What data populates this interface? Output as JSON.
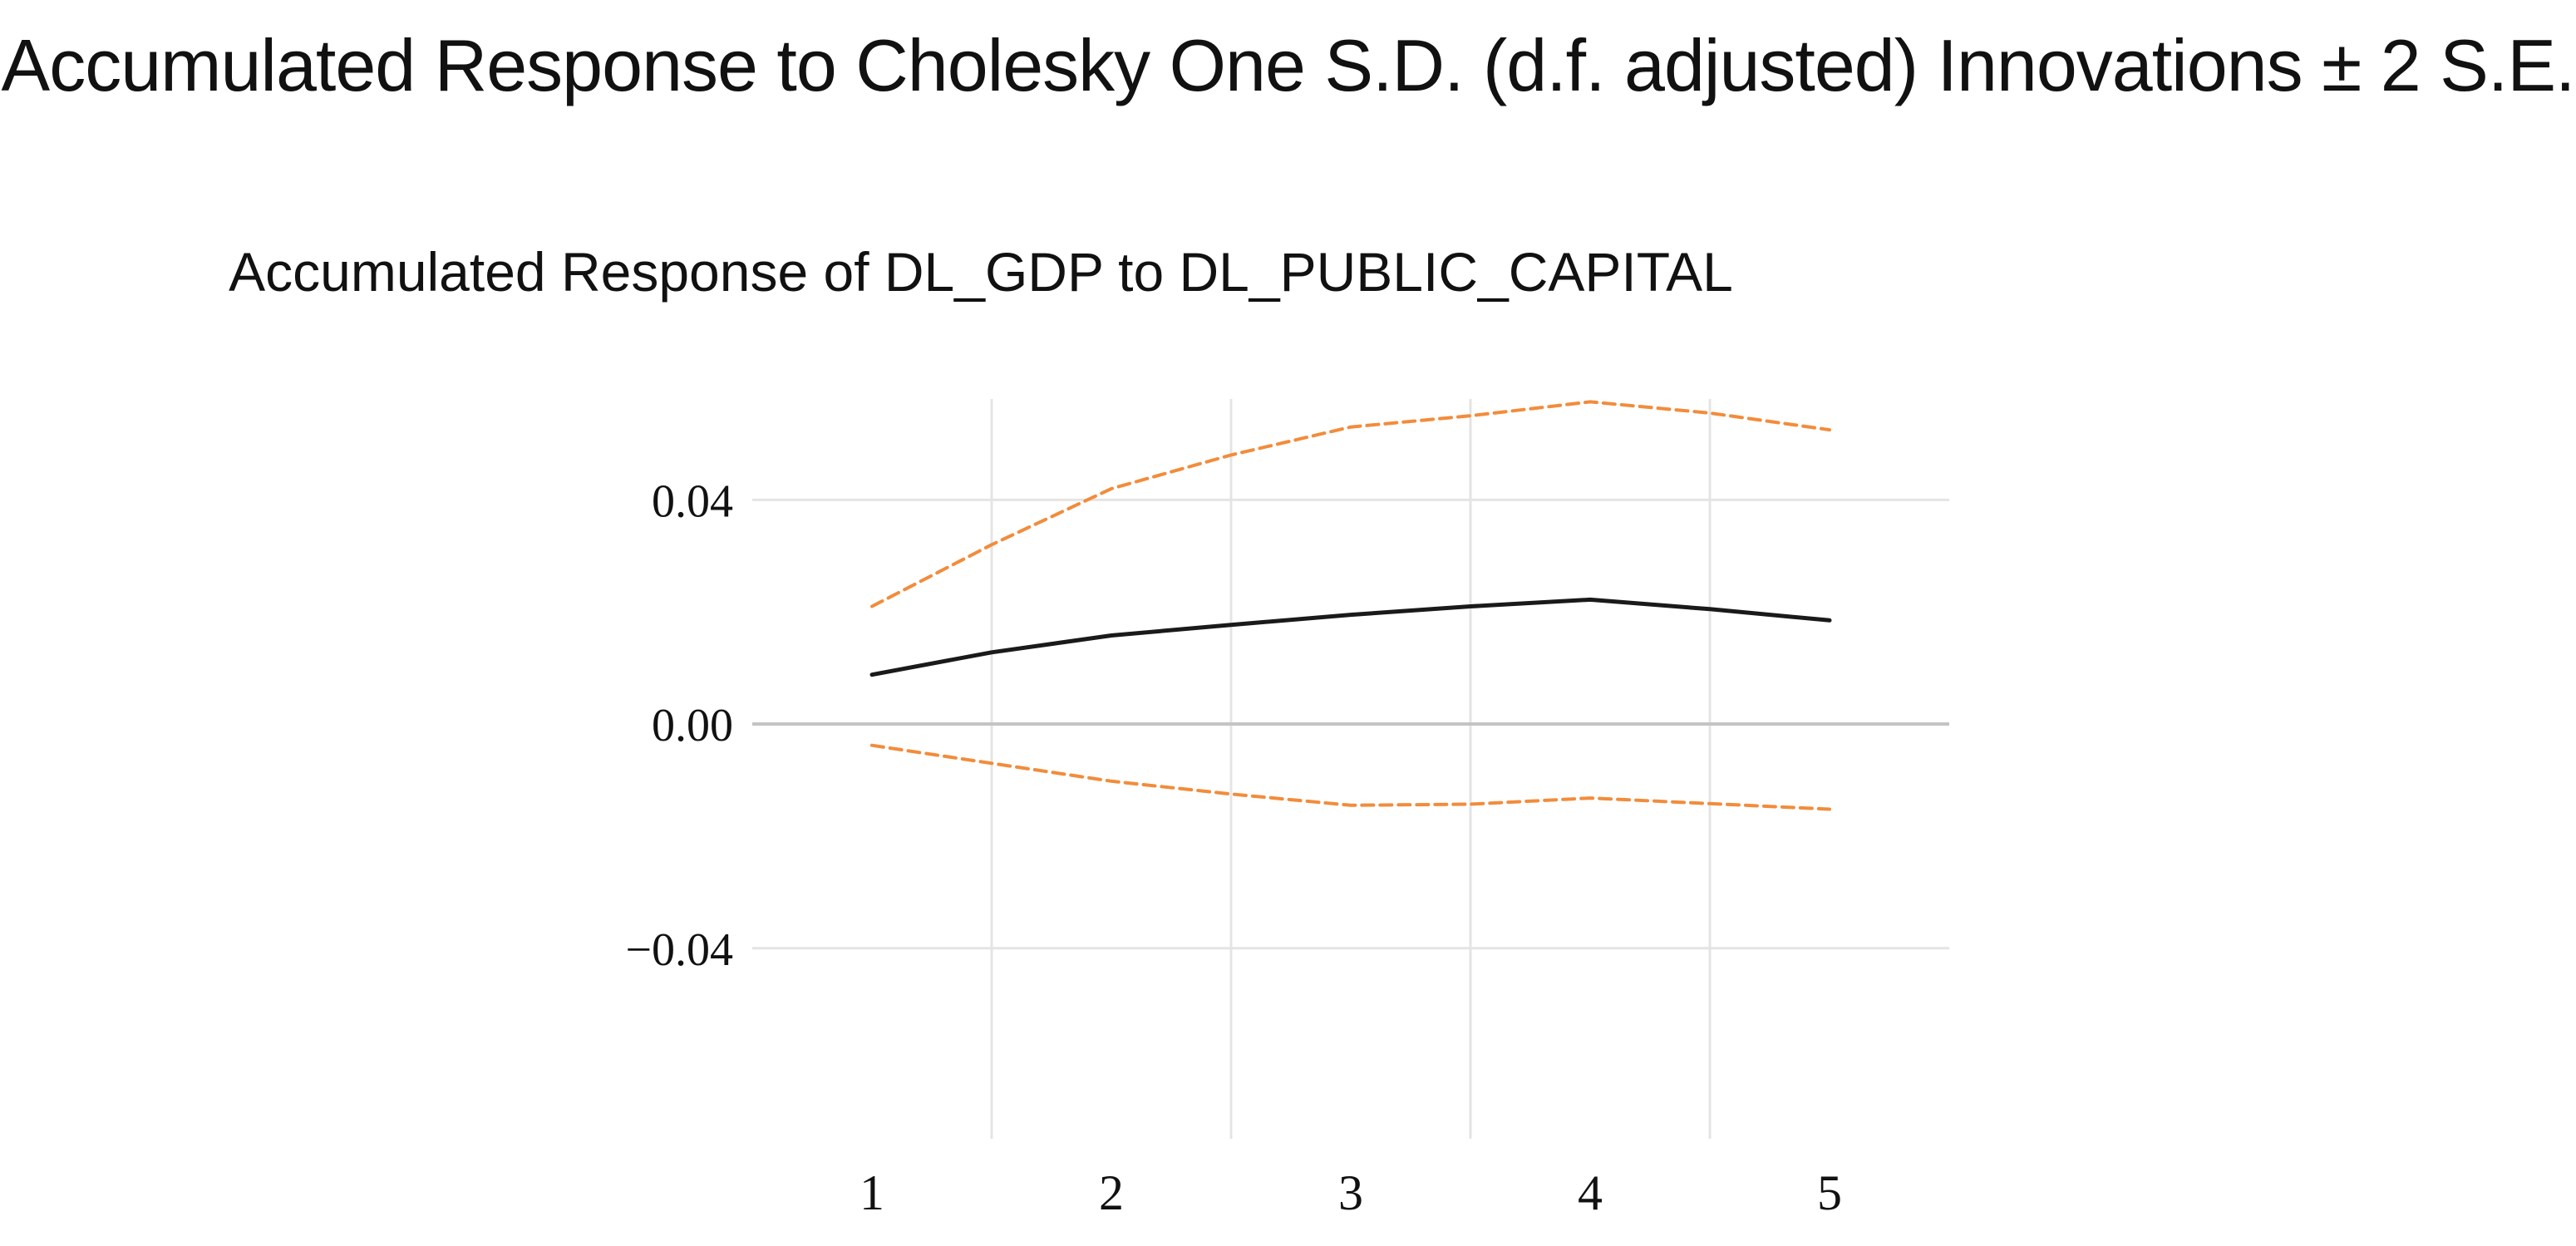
{
  "figure_title": "Accumulated Response to Cholesky One S.D. (d.f. adjusted) Innovations ± 2 S.E.",
  "chart_data": {
    "type": "line",
    "title": "Accumulated Response of DL_GDP to DL_PUBLIC_CAPITAL",
    "xlabel": "",
    "ylabel": "",
    "x": [
      1,
      2,
      3,
      4,
      5
    ],
    "x_tick_labels": [
      "1",
      "2",
      "3",
      "4",
      "5"
    ],
    "y_ticks": [
      0.04,
      0.0,
      -0.04
    ],
    "y_tick_labels": [
      "0.04",
      "0.00",
      "−0.04"
    ],
    "xlim": [
      0.5,
      5.5
    ],
    "ylim": [
      -0.074,
      0.058
    ],
    "grid": true,
    "legend": "none",
    "series": [
      {
        "name": "Upper band",
        "style": "dashed",
        "color": "#f28c3b",
        "x": [
          1,
          1.5,
          2,
          2.5,
          3,
          3.5,
          4,
          4.5,
          5
        ],
        "values": [
          0.021,
          0.032,
          0.042,
          0.048,
          0.053,
          0.055,
          0.0575,
          0.0555,
          0.0525
        ]
      },
      {
        "name": "Accumulated response",
        "style": "solid",
        "color": "#1a1a1a",
        "x": [
          1,
          1.5,
          2,
          2.5,
          3,
          3.5,
          4,
          4.5,
          5
        ],
        "values": [
          0.0088,
          0.0128,
          0.0158,
          0.0177,
          0.0195,
          0.021,
          0.0222,
          0.0205,
          0.0185
        ]
      },
      {
        "name": "Lower band",
        "style": "dashed",
        "color": "#f28c3b",
        "x": [
          1,
          1.5,
          2,
          2.5,
          3,
          3.5,
          4,
          4.5,
          5
        ],
        "values": [
          -0.0038,
          -0.007,
          -0.0102,
          -0.0125,
          -0.0145,
          -0.0143,
          -0.0132,
          -0.0142,
          -0.0152
        ]
      }
    ]
  }
}
